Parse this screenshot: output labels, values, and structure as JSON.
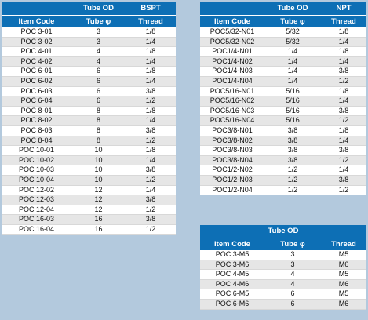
{
  "table_bspt": {
    "group_header": {
      "tube_od": "Tube OD",
      "thread_type": "BSPT"
    },
    "columns": {
      "item_code": "Item Code",
      "tube": "Tube φ",
      "thread": "Thread"
    },
    "rows": [
      [
        "POC 3-01",
        "3",
        "1/8"
      ],
      [
        "POC 3-02",
        "3",
        "1/4"
      ],
      [
        "POC 4-01",
        "4",
        "1/8"
      ],
      [
        "POC 4-02",
        "4",
        "1/4"
      ],
      [
        "POC 6-01",
        "6",
        "1/8"
      ],
      [
        "POC 6-02",
        "6",
        "1/4"
      ],
      [
        "POC 6-03",
        "6",
        "3/8"
      ],
      [
        "POC 6-04",
        "6",
        "1/2"
      ],
      [
        "POC 8-01",
        "8",
        "1/8"
      ],
      [
        "POC 8-02",
        "8",
        "1/4"
      ],
      [
        "POC 8-03",
        "8",
        "3/8"
      ],
      [
        "POC 8-04",
        "8",
        "1/2"
      ],
      [
        "POC 10-01",
        "10",
        "1/8"
      ],
      [
        "POC 10-02",
        "10",
        "1/4"
      ],
      [
        "POC 10-03",
        "10",
        "3/8"
      ],
      [
        "POC 10-04",
        "10",
        "1/2"
      ],
      [
        "POC 12-02",
        "12",
        "1/4"
      ],
      [
        "POC 12-03",
        "12",
        "3/8"
      ],
      [
        "POC 12-04",
        "12",
        "1/2"
      ],
      [
        "POC 16-03",
        "16",
        "3/8"
      ],
      [
        "POC 16-04",
        "16",
        "1/2"
      ]
    ]
  },
  "table_npt": {
    "group_header": {
      "tube_od": "Tube OD",
      "thread_type": "NPT"
    },
    "columns": {
      "item_code": "Item Code",
      "tube": "Tube φ",
      "thread": "Thread"
    },
    "rows": [
      [
        "POC5/32-N01",
        "5/32",
        "1/8"
      ],
      [
        "POC5/32-N02",
        "5/32",
        "1/4"
      ],
      [
        "POC1/4-N01",
        "1/4",
        "1/8"
      ],
      [
        "POC1/4-N02",
        "1/4",
        "1/4"
      ],
      [
        "POC1/4-N03",
        "1/4",
        "3/8"
      ],
      [
        "POC1/4-N04",
        "1/4",
        "1/2"
      ],
      [
        "POC5/16-N01",
        "5/16",
        "1/8"
      ],
      [
        "POC5/16-N02",
        "5/16",
        "1/4"
      ],
      [
        "POC5/16-N03",
        "5/16",
        "3/8"
      ],
      [
        "POC5/16-N04",
        "5/16",
        "1/2"
      ],
      [
        "POC3/8-N01",
        "3/8",
        "1/8"
      ],
      [
        "POC3/8-N02",
        "3/8",
        "1/4"
      ],
      [
        "POC3/8-N03",
        "3/8",
        "3/8"
      ],
      [
        "POC3/8-N04",
        "3/8",
        "1/2"
      ],
      [
        "POC1/2-N02",
        "1/2",
        "1/4"
      ],
      [
        "POC1/2-N03",
        "1/2",
        "3/8"
      ],
      [
        "POC1/2-N04",
        "1/2",
        "1/2"
      ]
    ]
  },
  "table_metric": {
    "group_header": {
      "tube_od": "Tube OD"
    },
    "columns": {
      "item_code": "Item Code",
      "tube": "Tube φ",
      "thread": "Thread"
    },
    "rows": [
      [
        "POC 3-M5",
        "3",
        "M5"
      ],
      [
        "POC 3-M6",
        "3",
        "M6"
      ],
      [
        "POC 4-M5",
        "4",
        "M5"
      ],
      [
        "POC 4-M6",
        "4",
        "M6"
      ],
      [
        "POC 6-M5",
        "6",
        "M5"
      ],
      [
        "POC 6-M6",
        "6",
        "M6"
      ]
    ]
  }
}
